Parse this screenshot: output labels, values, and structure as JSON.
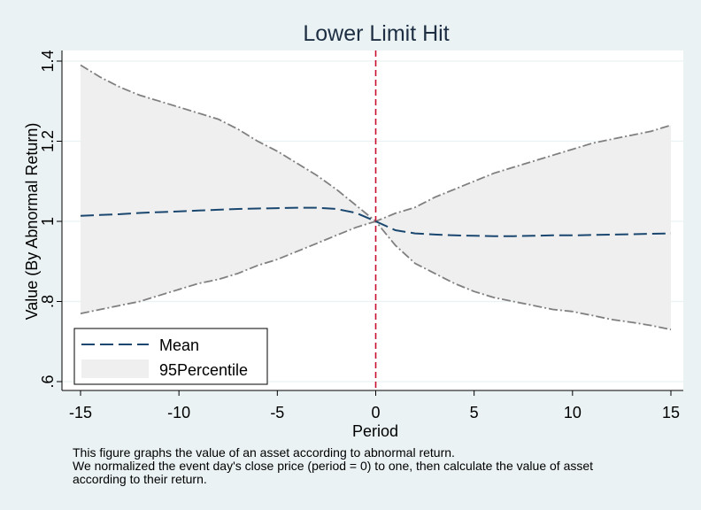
{
  "chart_data": {
    "type": "line",
    "title": "Lower Limit Hit",
    "xlabel": "Period",
    "ylabel": "Value (By Abnormal Return)",
    "xlim": [
      -15,
      15
    ],
    "ylim": [
      0.6,
      1.4
    ],
    "x_ticks": [
      -15,
      -10,
      -5,
      0,
      5,
      10,
      15
    ],
    "x_tick_labels": [
      "-15",
      "-10",
      "-5",
      "0",
      "5",
      "10",
      "15"
    ],
    "y_ticks": [
      0.6,
      0.8,
      1.0,
      1.2,
      1.4
    ],
    "y_tick_labels": [
      ".6",
      ".8",
      "1",
      "1.2",
      "1.4"
    ],
    "grid": "horizontal",
    "legend_placement": "bottom-left",
    "event_line_x": 0,
    "x": [
      -15,
      -14,
      -13,
      -12,
      -11,
      -10,
      -9,
      -8,
      -7,
      -6,
      -5,
      -4,
      -3,
      -2,
      -1,
      0,
      1,
      2,
      3,
      4,
      5,
      6,
      7,
      8,
      9,
      10,
      11,
      12,
      13,
      14,
      15
    ],
    "series": [
      {
        "name": "Mean",
        "style": "dashed",
        "color": "#1a476f",
        "values": [
          1.014,
          1.016,
          1.018,
          1.021,
          1.023,
          1.025,
          1.027,
          1.029,
          1.031,
          1.032,
          1.033,
          1.034,
          1.034,
          1.031,
          1.021,
          1.0,
          0.978,
          0.97,
          0.967,
          0.965,
          0.964,
          0.963,
          0.963,
          0.964,
          0.965,
          0.965,
          0.966,
          0.967,
          0.968,
          0.969,
          0.97
        ]
      },
      {
        "name": "95Percentile",
        "type": "band",
        "fill": "#efefef",
        "edge_color": "#808080",
        "upper": [
          1.39,
          1.36,
          1.335,
          1.315,
          1.3,
          1.285,
          1.27,
          1.255,
          1.23,
          1.2,
          1.175,
          1.145,
          1.115,
          1.08,
          1.04,
          1.0,
          1.02,
          1.035,
          1.06,
          1.08,
          1.1,
          1.12,
          1.135,
          1.15,
          1.165,
          1.18,
          1.195,
          1.205,
          1.215,
          1.225,
          1.24
        ],
        "lower": [
          0.77,
          0.78,
          0.79,
          0.8,
          0.815,
          0.83,
          0.845,
          0.855,
          0.87,
          0.89,
          0.905,
          0.925,
          0.945,
          0.965,
          0.985,
          1.0,
          0.94,
          0.895,
          0.87,
          0.845,
          0.825,
          0.81,
          0.8,
          0.79,
          0.78,
          0.775,
          0.765,
          0.755,
          0.748,
          0.74,
          0.73
        ]
      }
    ]
  },
  "notes": [
    "This figure graphs the value of an asset according to abnormal return.",
    "We normalized the event day's close price (period = 0) to one, then calculate the value of asset",
    "according to their return."
  ]
}
